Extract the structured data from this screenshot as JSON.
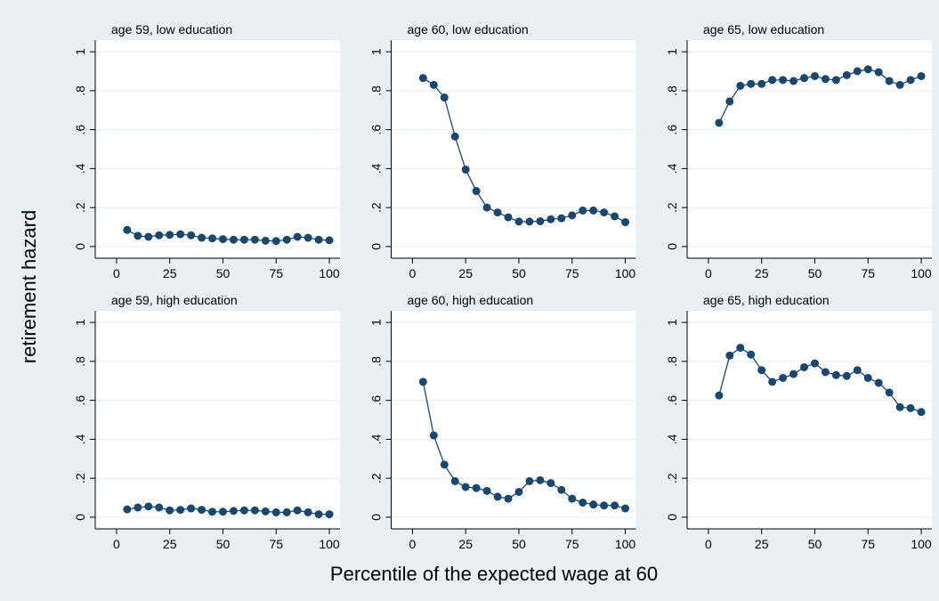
{
  "chart_data": [
    {
      "type": "line",
      "title": "age 59, low education",
      "x": [
        5,
        10,
        15,
        20,
        25,
        30,
        35,
        40,
        45,
        50,
        55,
        60,
        65,
        70,
        75,
        80,
        85,
        90,
        95,
        100
      ],
      "values": [
        0.085,
        0.055,
        0.05,
        0.058,
        0.06,
        0.063,
        0.058,
        0.045,
        0.042,
        0.038,
        0.035,
        0.035,
        0.035,
        0.03,
        0.028,
        0.035,
        0.05,
        0.045,
        0.035,
        0.032
      ],
      "color": "#1a476f",
      "xlim": [
        -10,
        105
      ],
      "ylim": [
        -0.06,
        1.06
      ],
      "xticks": [
        0,
        25,
        50,
        75,
        100
      ],
      "yticks": [
        0,
        {
          "value": 0.2,
          "label": ".2"
        },
        {
          "value": 0.4,
          "label": ".4"
        },
        {
          "value": 0.6,
          "label": ".6"
        },
        {
          "value": 0.8,
          "label": ".8"
        },
        1
      ],
      "grid": true
    },
    {
      "type": "line",
      "title": "age 60, low education",
      "x": [
        5,
        10,
        15,
        20,
        25,
        30,
        35,
        40,
        45,
        50,
        55,
        60,
        65,
        70,
        75,
        80,
        85,
        90,
        95,
        100
      ],
      "values": [
        0.865,
        0.83,
        0.765,
        0.565,
        0.395,
        0.285,
        0.2,
        0.175,
        0.15,
        0.128,
        0.128,
        0.13,
        0.14,
        0.145,
        0.16,
        0.185,
        0.185,
        0.175,
        0.155,
        0.125
      ],
      "color": "#1a476f",
      "xlim": [
        -10,
        105
      ],
      "ylim": [
        -0.06,
        1.06
      ],
      "xticks": [
        0,
        25,
        50,
        75,
        100
      ],
      "yticks": [
        0,
        {
          "value": 0.2,
          "label": ".2"
        },
        {
          "value": 0.4,
          "label": ".4"
        },
        {
          "value": 0.6,
          "label": ".6"
        },
        {
          "value": 0.8,
          "label": ".8"
        },
        1
      ],
      "grid": true
    },
    {
      "type": "line",
      "title": "age 65, low education",
      "x": [
        5,
        10,
        15,
        20,
        25,
        30,
        35,
        40,
        45,
        50,
        55,
        60,
        65,
        70,
        75,
        80,
        85,
        90,
        95,
        100
      ],
      "values": [
        0.635,
        0.745,
        0.825,
        0.835,
        0.835,
        0.855,
        0.855,
        0.85,
        0.865,
        0.875,
        0.86,
        0.855,
        0.88,
        0.9,
        0.91,
        0.895,
        0.85,
        0.83,
        0.855,
        0.875
      ],
      "color": "#1a476f",
      "xlim": [
        -10,
        105
      ],
      "ylim": [
        -0.06,
        1.06
      ],
      "xticks": [
        0,
        25,
        50,
        75,
        100
      ],
      "yticks": [
        0,
        {
          "value": 0.2,
          "label": ".2"
        },
        {
          "value": 0.4,
          "label": ".4"
        },
        {
          "value": 0.6,
          "label": ".6"
        },
        {
          "value": 0.8,
          "label": ".8"
        },
        1
      ],
      "grid": true
    },
    {
      "type": "line",
      "title": "age 59, high education",
      "x": [
        5,
        10,
        15,
        20,
        25,
        30,
        35,
        40,
        45,
        50,
        55,
        60,
        65,
        70,
        75,
        80,
        85,
        90,
        95,
        100
      ],
      "values": [
        0.04,
        0.05,
        0.055,
        0.05,
        0.035,
        0.038,
        0.045,
        0.038,
        0.028,
        0.028,
        0.032,
        0.035,
        0.035,
        0.03,
        0.025,
        0.025,
        0.035,
        0.025,
        0.015,
        0.015
      ],
      "color": "#1a476f",
      "xlim": [
        -10,
        105
      ],
      "ylim": [
        -0.06,
        1.06
      ],
      "xticks": [
        0,
        25,
        50,
        75,
        100
      ],
      "yticks": [
        0,
        {
          "value": 0.2,
          "label": ".2"
        },
        {
          "value": 0.4,
          "label": ".4"
        },
        {
          "value": 0.6,
          "label": ".6"
        },
        {
          "value": 0.8,
          "label": ".8"
        },
        1
      ],
      "grid": true
    },
    {
      "type": "line",
      "title": "age 60, high education",
      "x": [
        5,
        10,
        15,
        20,
        25,
        30,
        35,
        40,
        45,
        50,
        55,
        60,
        65,
        70,
        75,
        80,
        85,
        90,
        95,
        100
      ],
      "values": [
        0.695,
        0.42,
        0.27,
        0.185,
        0.155,
        0.15,
        0.135,
        0.105,
        0.095,
        0.13,
        0.185,
        0.19,
        0.175,
        0.14,
        0.095,
        0.075,
        0.065,
        0.06,
        0.06,
        0.045
      ],
      "color": "#1a476f",
      "xlim": [
        -10,
        105
      ],
      "ylim": [
        -0.06,
        1.06
      ],
      "xticks": [
        0,
        25,
        50,
        75,
        100
      ],
      "yticks": [
        0,
        {
          "value": 0.2,
          "label": ".2"
        },
        {
          "value": 0.4,
          "label": ".4"
        },
        {
          "value": 0.6,
          "label": ".6"
        },
        {
          "value": 0.8,
          "label": ".8"
        },
        1
      ],
      "grid": true
    },
    {
      "type": "line",
      "title": "age 65, high education",
      "x": [
        5,
        10,
        15,
        20,
        25,
        30,
        35,
        40,
        45,
        50,
        55,
        60,
        65,
        70,
        75,
        80,
        85,
        90,
        95,
        100
      ],
      "values": [
        0.625,
        0.83,
        0.87,
        0.835,
        0.755,
        0.695,
        0.715,
        0.735,
        0.77,
        0.79,
        0.745,
        0.73,
        0.725,
        0.755,
        0.715,
        0.69,
        0.64,
        0.565,
        0.56,
        0.54
      ],
      "color": "#1a476f",
      "xlim": [
        -10,
        105
      ],
      "ylim": [
        -0.06,
        1.06
      ],
      "xticks": [
        0,
        25,
        50,
        75,
        100
      ],
      "yticks": [
        0,
        {
          "value": 0.2,
          "label": ".2"
        },
        {
          "value": 0.4,
          "label": ".4"
        },
        {
          "value": 0.6,
          "label": ".6"
        },
        {
          "value": 0.8,
          "label": ".8"
        },
        1
      ],
      "grid": true
    }
  ],
  "x_label": "Percentile of the expected wage at 60",
  "y_label": "retirement hazard"
}
